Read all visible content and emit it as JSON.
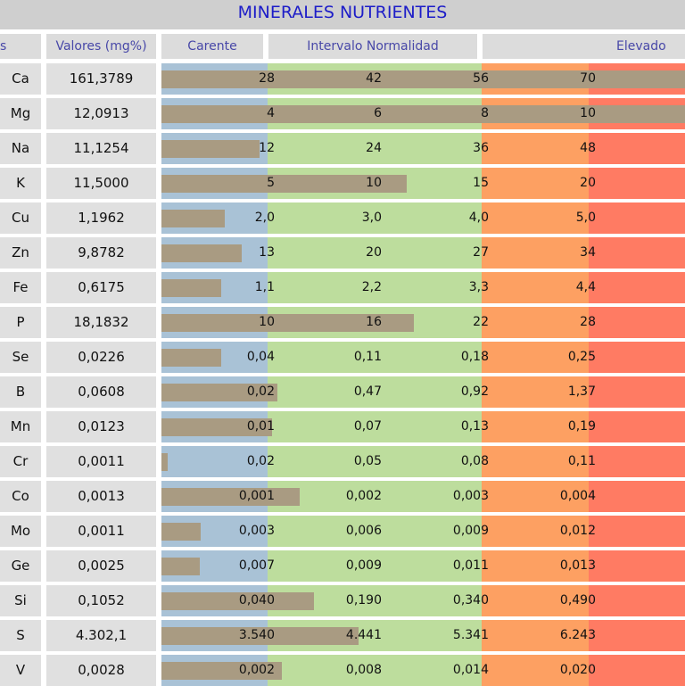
{
  "title": "MINERALES NUTRIENTES",
  "headers": {
    "col0": "s",
    "col1": "Valores (mg%)",
    "carente": "Carente",
    "normal": "Intervalo Normalidad",
    "elevado": "Elevado"
  },
  "colors": {
    "carente": "#a9c2d6",
    "normal": "#bddd9d",
    "elevado1": "#fda062",
    "elevado2": "#ff7b63",
    "bar": "#a99b82"
  },
  "chart_data": {
    "type": "bar",
    "title": "MINERALES NUTRIENTES",
    "rows": [
      {
        "name": "Ca",
        "value": "161,3789",
        "bar_value": 161.3789,
        "ticks": [
          "28",
          "42",
          "56",
          "70"
        ],
        "tick_values": [
          28,
          42,
          56,
          70
        ]
      },
      {
        "name": "Mg",
        "value": "12,0913",
        "bar_value": 12.0913,
        "ticks": [
          "4",
          "6",
          "8",
          "10"
        ],
        "tick_values": [
          4,
          6,
          8,
          10
        ]
      },
      {
        "name": "Na",
        "value": "11,1254",
        "bar_value": 11.1254,
        "ticks": [
          "12",
          "24",
          "36",
          "48"
        ],
        "tick_values": [
          12,
          24,
          36,
          48
        ]
      },
      {
        "name": "K",
        "value": "11,5000",
        "bar_value": 11.5,
        "ticks": [
          "5",
          "10",
          "15",
          "20"
        ],
        "tick_values": [
          5,
          10,
          15,
          20
        ]
      },
      {
        "name": "Cu",
        "value": "1,1962",
        "bar_value": 1.1962,
        "ticks": [
          "2,0",
          "3,0",
          "4,0",
          "5,0"
        ],
        "tick_values": [
          2,
          3,
          4,
          5
        ]
      },
      {
        "name": "Zn",
        "value": "9,8782",
        "bar_value": 9.8782,
        "ticks": [
          "13",
          "20",
          "27",
          "34"
        ],
        "tick_values": [
          13,
          20,
          27,
          34
        ]
      },
      {
        "name": "Fe",
        "value": "0,6175",
        "bar_value": 0.6175,
        "ticks": [
          "1,1",
          "2,2",
          "3,3",
          "4,4"
        ],
        "tick_values": [
          1.1,
          2.2,
          3.3,
          4.4
        ]
      },
      {
        "name": "P",
        "value": "18,1832",
        "bar_value": 18.1832,
        "ticks": [
          "10",
          "16",
          "22",
          "28"
        ],
        "tick_values": [
          10,
          16,
          22,
          28
        ]
      },
      {
        "name": "Se",
        "value": "0,0226",
        "bar_value": 0.0226,
        "ticks": [
          "0,04",
          "0,11",
          "0,18",
          "0,25"
        ],
        "tick_values": [
          0.04,
          0.11,
          0.18,
          0.25
        ]
      },
      {
        "name": "B",
        "value": "0,0608",
        "bar_value": 0.0608,
        "ticks": [
          "0,02",
          "0,47",
          "0,92",
          "1,37"
        ],
        "tick_values": [
          0.02,
          0.47,
          0.92,
          1.37
        ]
      },
      {
        "name": "Mn",
        "value": "0,0123",
        "bar_value": 0.0123,
        "ticks": [
          "0,01",
          "0,07",
          "0,13",
          "0,19"
        ],
        "tick_values": [
          0.01,
          0.07,
          0.13,
          0.19
        ]
      },
      {
        "name": "Cr",
        "value": "0,0011",
        "bar_value": 0.0011,
        "ticks": [
          "0,02",
          "0,05",
          "0,08",
          "0,11"
        ],
        "tick_values": [
          0.02,
          0.05,
          0.08,
          0.11
        ]
      },
      {
        "name": "Co",
        "value": "0,0013",
        "bar_value": 0.0013,
        "ticks": [
          "0,001",
          "0,002",
          "0,003",
          "0,004"
        ],
        "tick_values": [
          0.001,
          0.002,
          0.003,
          0.004
        ]
      },
      {
        "name": "Mo",
        "value": "0,0011",
        "bar_value": 0.0011,
        "ticks": [
          "0,003",
          "0,006",
          "0,009",
          "0,012"
        ],
        "tick_values": [
          0.003,
          0.006,
          0.009,
          0.012
        ]
      },
      {
        "name": "Ge",
        "value": "0,0025",
        "bar_value": 0.0025,
        "ticks": [
          "0,007",
          "0,009",
          "0,011",
          "0,013"
        ],
        "tick_values": [
          0.007,
          0.009,
          0.011,
          0.013
        ]
      },
      {
        "name": "Si",
        "value": "0,1052",
        "bar_value": 0.1052,
        "ticks": [
          "0,040",
          "0,190",
          "0,340",
          "0,490"
        ],
        "tick_values": [
          0.04,
          0.19,
          0.34,
          0.49
        ]
      },
      {
        "name": "S",
        "value": "4.302,1",
        "bar_value": 4302.1,
        "ticks": [
          "3.540",
          "4.441",
          "5.341",
          "6.243"
        ],
        "tick_values": [
          3540,
          4441,
          5341,
          6243
        ]
      },
      {
        "name": "V",
        "value": "0,0028",
        "bar_value": 0.0028,
        "ticks": [
          "0,002",
          "0,008",
          "0,014",
          "0,020"
        ],
        "tick_values": [
          0.002,
          0.008,
          0.014,
          0.02
        ]
      }
    ]
  }
}
